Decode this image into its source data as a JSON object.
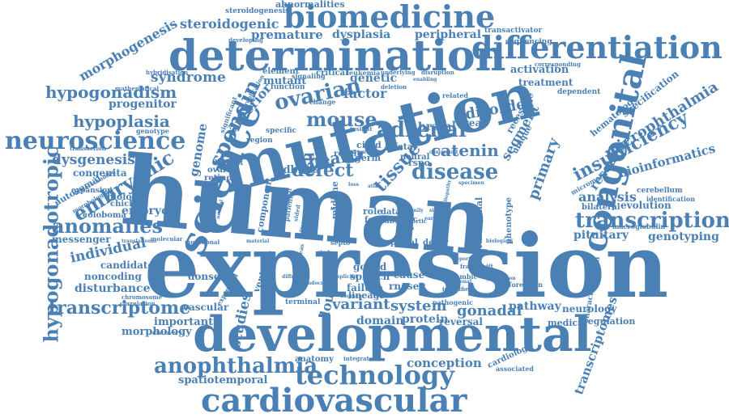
{
  "theme": {
    "word_color": "#4a80b4",
    "background": "#ffffff"
  },
  "words": {
    "human": "human",
    "expression": "expression",
    "mutation": "mutation",
    "developmental": "developmental",
    "determination": "determination",
    "biomedicine": "biomedicine",
    "differentiation": "differentiation",
    "science": "science",
    "congenital": "congenital",
    "cardiovascular": "cardiovascular",
    "technology": "technology",
    "neuroscience": "neuroscience",
    "transcription": "transcription",
    "adrenal": "adrenal",
    "disease": "disease",
    "anophthalmia": "anophthalmia",
    "transcriptome": "transcriptome",
    "hypogonadotropic": "hypogonadotropic",
    "anomalies": "anomalies",
    "embryonic": "embryonic",
    "hypoplasia": "hypoplasia",
    "hypogonadism": "hypogonadism",
    "spondin": "spondin",
    "mouse": "mouse",
    "ovarian": "ovarian",
    "defect": "defect",
    "tissue": "tissue",
    "heart": "heart",
    "insufficiency": "insufficiency",
    "microphthalmia": "microphthalmia",
    "primary": "primary",
    "catenin": "catenin",
    "morphogenesis": "morphogenesis",
    "steroidogenic": "steroidogenic",
    "syndrome": "syndrome",
    "dysgenesis": "dysgenesis",
    "individual": "individual",
    "gonadal": "gonadal",
    "variant": "variant",
    "system": "system",
    "studies": "studies",
    "double": "double",
    "disorder": "disorder",
    "segment": "segment",
    "resource": "resource",
    "bioinformatics": "bioinformatics",
    "analysis": "analysis",
    "genotyping": "genotyping",
    "pituitary": "pituitary",
    "conception": "conception",
    "spatiotemporal": "spatiotemporal",
    "transcriptomes": "transcriptomes",
    "pathway": "pathway",
    "neurology": "neurology",
    "regulation": "regulation",
    "domain": "domain",
    "protein": "protein",
    "reversal": "reversal",
    "medical": "medical",
    "morphology": "morphology",
    "important": "important",
    "vascular": "vascular",
    "disturbance": "disturbance",
    "noncoding": "noncoding",
    "candidate": "candidate",
    "messenger": "messenger",
    "embryo": "embryo",
    "progenitor": "progenitor",
    "genome": "genome",
    "anterior": "anterior",
    "factor": "factor",
    "genetic": "genetic",
    "mutant": "mutant",
    "premature": "premature",
    "dysplasia": "dysplasia",
    "peripheral": "peripheral",
    "abnormalities": "abnormalities",
    "steroidogenesis": "steroidogenesis",
    "transactivator": "transactivator",
    "activation": "activation",
    "treatment": "treatment",
    "hematology": "hematology",
    "specification": "specification",
    "evolution": "evolution",
    "cerebellum": "cerebellum",
    "macroglobulin": "macroglobulin",
    "identification": "identification",
    "bilateral": "bilateral",
    "biology": "biology",
    "chicken": "chicken",
    "coloboma": "coloboma",
    "congenita": "congenita",
    "autosomal": "autosomal",
    "brain": "brain",
    "reveal": "reveal",
    "recessive": "recessive",
    "unique": "unique",
    "element": "element",
    "critical": "critical",
    "function": "function",
    "ovaries": "ovaries",
    "retinoic": "retinoic",
    "distinct": "distinct",
    "component": "component",
    "ventricle": "ventricle",
    "hdbr": "hdbr",
    "cell": "cell",
    "cited": "cited",
    "result": "result",
    "germ": "germ",
    "fetal": "fetal",
    "neural": "neural",
    "midline": "midline",
    "role": "role",
    "form": "form",
    "data": "data",
    "tube": "tube",
    "optic": "optic",
    "functional": "functional",
    "phenotype": "phenotype",
    "cause": "cause",
    "rnaseq": "rnaseq",
    "gonad": "gonad",
    "splotch": "splotch",
    "failure": "failure",
    "lineage": "lineage",
    "portal": "portal",
    "decay": "decay",
    "rspo": "rspo",
    "cardiology": "cardiology",
    "anatomy": "anatomy",
    "donson": "donson",
    "terminal": "terminal",
    "sequencing": "sequencing",
    "dependent": "dependent",
    "region": "region",
    "specific": "specific",
    "signaling": "signaling",
    "leukemia": "leukemia",
    "underlying": "underlying",
    "disruption": "disruption",
    "related": "related",
    "pathogenic": "pathogenic",
    "forebrain": "forebrain",
    "rhombic": "rhombic",
    "expansion": "expansion",
    "transaction": "transaction",
    "correlation": "correlation",
    "discovery": "discovery",
    "expressed": "expressed",
    "associated": "associated",
    "integrated": "integrated",
    "hybridisation": "hybridisation",
    "mathematical": "mathematical",
    "replication": "replication",
    "significant": "significant",
    "change": "change",
    "insight": "insight",
    "corresponding": "corresponding",
    "developing": "developing",
    "characterisation": "characterisation",
    "micromelia": "micromelia",
    "genotype": "genotype",
    "chromosome": "chromosome",
    "understanding": "understanding",
    "morphological": "morphological",
    "molecular": "molecular",
    "mutational": "mutational",
    "material": "material",
    "frameshift": "frameshift",
    "reporter": "reporter",
    "identifies": "identifies",
    "additional": "additional",
    "generation": "generation",
    "enabling": "enabling",
    "deletion": "deletion",
    "novel": "novel",
    "research": "research",
    "patient": "patient",
    "sided": "sided",
    "review": "review",
    "different": "different",
    "endocrine": "endocrine",
    "splicing": "splicing",
    "augment": "augment",
    "aortic": "aortic",
    "arch": "arch",
    "early": "early",
    "septo": "septo",
    "whereas": "whereas",
    "study": "study",
    "ciliopathy": "ciliopathy",
    "family": "family",
    "single": "single",
    "crest": "crest",
    "atlas": "atlas",
    "biological": "biological",
    "translational": "translational",
    "specimen": "specimen",
    "compound": "compound",
    "normal": "normal",
    "spectrum": "spectrum",
    "loss": "loss",
    "scale": "scale"
  }
}
